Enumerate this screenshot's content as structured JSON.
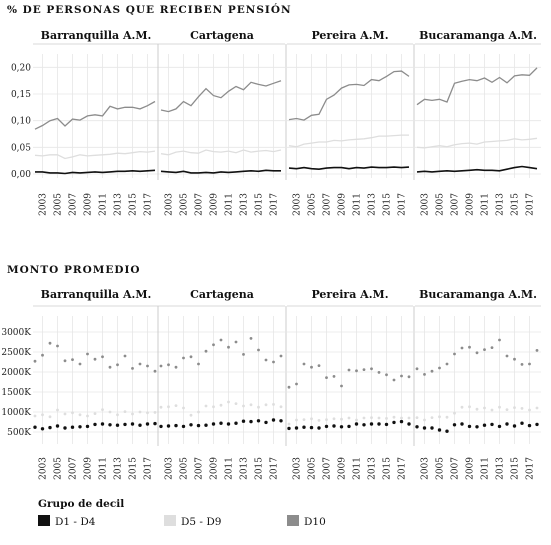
{
  "colors": {
    "D1 - D4": "#111111",
    "D5 - D9": "#dedede",
    "D10": "#8c8c8c"
  },
  "chart_data": [
    {
      "type": "line",
      "title": "% DE PERSONAS QUE RECIBEN PENSIÓN",
      "facets": [
        "Barranquilla A.M.",
        "Cartagena",
        "Pereira A.M.",
        "Bucaramanga A.M."
      ],
      "x": [
        2002,
        2003,
        2004,
        2005,
        2006,
        2007,
        2008,
        2009,
        2010,
        2011,
        2012,
        2013,
        2014,
        2015,
        2016,
        2017,
        2018
      ],
      "x_tick_labels": [
        "2003",
        "2005",
        "2007",
        "2009",
        "2011",
        "2013",
        "2015",
        "2017"
      ],
      "y_tick_labels": [
        "0,00",
        "0,05",
        "0,10",
        "0,15",
        "0,20"
      ],
      "ylim": [
        0.0,
        0.21
      ],
      "grid": true,
      "series": [
        {
          "name": "D10",
          "values_by_facet": [
            [
              0.084,
              0.091,
              0.1,
              0.104,
              0.09,
              0.103,
              0.101,
              0.109,
              0.111,
              0.109,
              0.127,
              0.122,
              0.125,
              0.125,
              0.122,
              0.128,
              0.136
            ],
            [
              0.12,
              0.117,
              0.122,
              0.136,
              0.128,
              0.145,
              0.16,
              0.147,
              0.143,
              0.155,
              0.164,
              0.158,
              0.172,
              0.168,
              0.165,
              0.17,
              0.175
            ],
            [
              0.102,
              0.104,
              0.101,
              0.11,
              0.112,
              0.14,
              0.148,
              0.161,
              0.167,
              0.168,
              0.166,
              0.177,
              0.175,
              0.183,
              0.192,
              0.193,
              0.183
            ],
            [
              0.13,
              0.14,
              0.138,
              0.14,
              0.135,
              0.17,
              0.174,
              0.177,
              0.175,
              0.18,
              0.172,
              0.181,
              0.171,
              0.184,
              0.186,
              0.185,
              0.199
            ]
          ]
        },
        {
          "name": "D5 - D9",
          "values_by_facet": [
            [
              0.035,
              0.034,
              0.036,
              0.036,
              0.029,
              0.032,
              0.036,
              0.034,
              0.035,
              0.036,
              0.037,
              0.039,
              0.038,
              0.04,
              0.042,
              0.041,
              0.043
            ],
            [
              0.038,
              0.036,
              0.041,
              0.043,
              0.04,
              0.039,
              0.045,
              0.042,
              0.041,
              0.043,
              0.04,
              0.045,
              0.041,
              0.043,
              0.044,
              0.042,
              0.045
            ],
            [
              0.053,
              0.051,
              0.056,
              0.058,
              0.06,
              0.06,
              0.063,
              0.062,
              0.064,
              0.065,
              0.066,
              0.068,
              0.071,
              0.071,
              0.072,
              0.073,
              0.073
            ],
            [
              0.05,
              0.049,
              0.051,
              0.053,
              0.051,
              0.055,
              0.057,
              0.058,
              0.056,
              0.06,
              0.061,
              0.062,
              0.063,
              0.066,
              0.064,
              0.065,
              0.067
            ]
          ]
        },
        {
          "name": "D1 - D4",
          "values_by_facet": [
            [
              0.004,
              0.004,
              0.002,
              0.002,
              0.001,
              0.003,
              0.002,
              0.003,
              0.004,
              0.003,
              0.004,
              0.005,
              0.005,
              0.006,
              0.005,
              0.006,
              0.007
            ],
            [
              0.005,
              0.004,
              0.003,
              0.005,
              0.002,
              0.002,
              0.003,
              0.002,
              0.004,
              0.003,
              0.004,
              0.005,
              0.006,
              0.005,
              0.007,
              0.006,
              0.006
            ],
            [
              0.011,
              0.01,
              0.012,
              0.01,
              0.009,
              0.011,
              0.012,
              0.012,
              0.01,
              0.012,
              0.011,
              0.013,
              0.012,
              0.012,
              0.013,
              0.012,
              0.013
            ],
            [
              0.004,
              0.005,
              0.004,
              0.005,
              0.006,
              0.005,
              0.006,
              0.007,
              0.008,
              0.007,
              0.007,
              0.006,
              0.009,
              0.012,
              0.014,
              0.012,
              0.01
            ]
          ]
        }
      ]
    },
    {
      "type": "scatter",
      "title": "MONTO PROMEDIO",
      "facets": [
        "Barranquilla A.M.",
        "Cartagena",
        "Pereira A.M.",
        "Bucaramanga A.M."
      ],
      "x": [
        2002,
        2003,
        2004,
        2005,
        2006,
        2007,
        2008,
        2009,
        2010,
        2011,
        2012,
        2013,
        2014,
        2015,
        2016,
        2017,
        2018
      ],
      "x_tick_labels": [
        "2003",
        "2005",
        "2007",
        "2009",
        "2011",
        "2013",
        "2015",
        "2017"
      ],
      "y_tick_labels": [
        "500K",
        "1000K",
        "1500K",
        "2000K",
        "2500K",
        "3000K"
      ],
      "y_tick_values": [
        500,
        1000,
        1500,
        2000,
        2500,
        3000
      ],
      "ylim": [
        300,
        3200
      ],
      "grid": true,
      "series": [
        {
          "name": "D10",
          "values_by_facet": [
            [
              2270,
              2420,
              2720,
              2650,
              2280,
              2310,
              2200,
              2450,
              2320,
              2380,
              2120,
              2180,
              2400,
              2090,
              2200,
              2150,
              2020
            ],
            [
              2150,
              2180,
              2120,
              2350,
              2380,
              2200,
              2520,
              2680,
              2800,
              2620,
              2750,
              2440,
              2840,
              2550,
              2300,
              2250,
              2400
            ],
            [
              1620,
              1700,
              2200,
              2120,
              2160,
              1860,
              1890,
              1650,
              2050,
              2030,
              2060,
              2080,
              1990,
              1930,
              1800,
              1900,
              1880
            ],
            [
              2080,
              1940,
              2020,
              2100,
              2200,
              2450,
              2600,
              2620,
              2480,
              2560,
              2610,
              2800,
              2400,
              2320,
              2190,
              2200,
              2540
            ]
          ]
        },
        {
          "name": "D5 - D9",
          "values_by_facet": [
            [
              900,
              930,
              880,
              1050,
              950,
              980,
              930,
              900,
              960,
              1060,
              1000,
              930,
              1010,
              950,
              1000,
              980,
              990
            ],
            [
              1120,
              1130,
              1160,
              1100,
              920,
              1000,
              1150,
              1130,
              1170,
              1250,
              1210,
              1150,
              1180,
              1120,
              1180,
              1190,
              1130
            ],
            [
              700,
              800,
              810,
              830,
              790,
              810,
              830,
              820,
              850,
              800,
              850,
              860,
              850,
              840,
              870,
              850,
              850
            ],
            [
              860,
              800,
              860,
              880,
              870,
              970,
              1120,
              1130,
              1070,
              1100,
              1050,
              1120,
              1060,
              1110,
              1090,
              1050,
              1100
            ]
          ]
        },
        {
          "name": "D1 - D4",
          "values_by_facet": [
            [
              620,
              580,
              610,
              650,
              600,
              620,
              630,
              640,
              690,
              700,
              680,
              670,
              690,
              700,
              670,
              700,
              710
            ],
            [
              640,
              650,
              660,
              640,
              680,
              660,
              670,
              700,
              720,
              700,
              720,
              770,
              760,
              780,
              740,
              800,
              780
            ],
            [
              590,
              600,
              620,
              610,
              600,
              640,
              650,
              630,
              640,
              700,
              680,
              700,
              700,
              690,
              740,
              760,
              700
            ],
            [
              630,
              600,
              600,
              550,
              520,
              680,
              700,
              640,
              630,
              670,
              690,
              640,
              700,
              650,
              720,
              660,
              690
            ]
          ]
        }
      ]
    }
  ],
  "legend": {
    "title": "Grupo de decil",
    "items": [
      {
        "label": "D1 - D4",
        "color": "#111111"
      },
      {
        "label": "D5 - D9",
        "color": "#dedede"
      },
      {
        "label": "D10",
        "color": "#8c8c8c"
      }
    ]
  }
}
